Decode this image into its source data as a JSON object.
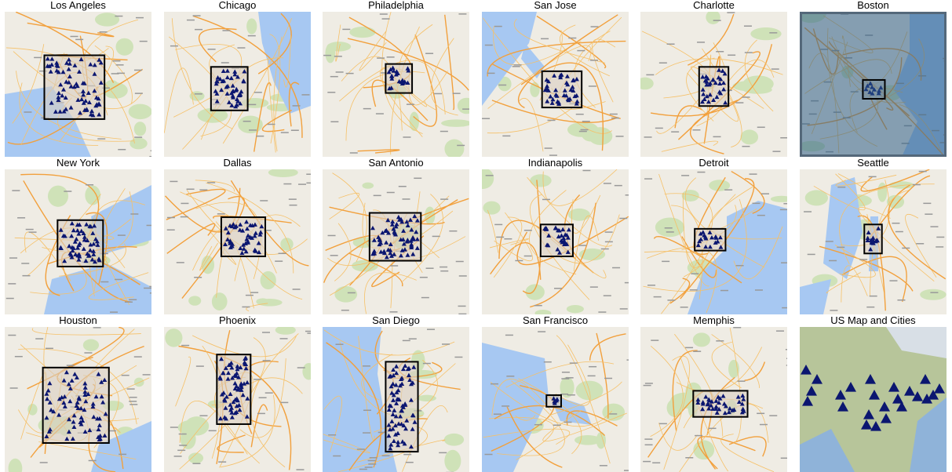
{
  "panels": [
    {
      "title": "Los Angeles"
    },
    {
      "title": "Chicago"
    },
    {
      "title": "Philadelphia"
    },
    {
      "title": "San Jose"
    },
    {
      "title": "Charlotte"
    },
    {
      "title": "Boston"
    },
    {
      "title": "New York"
    },
    {
      "title": "Dallas"
    },
    {
      "title": "San Antonio"
    },
    {
      "title": "Indianapolis"
    },
    {
      "title": "Detroit"
    },
    {
      "title": "Seattle"
    },
    {
      "title": "Houston"
    },
    {
      "title": "Phoenix"
    },
    {
      "title": "San Diego"
    },
    {
      "title": "San Francisco"
    },
    {
      "title": "Memphis"
    },
    {
      "title": "US Map and Cities"
    }
  ]
}
